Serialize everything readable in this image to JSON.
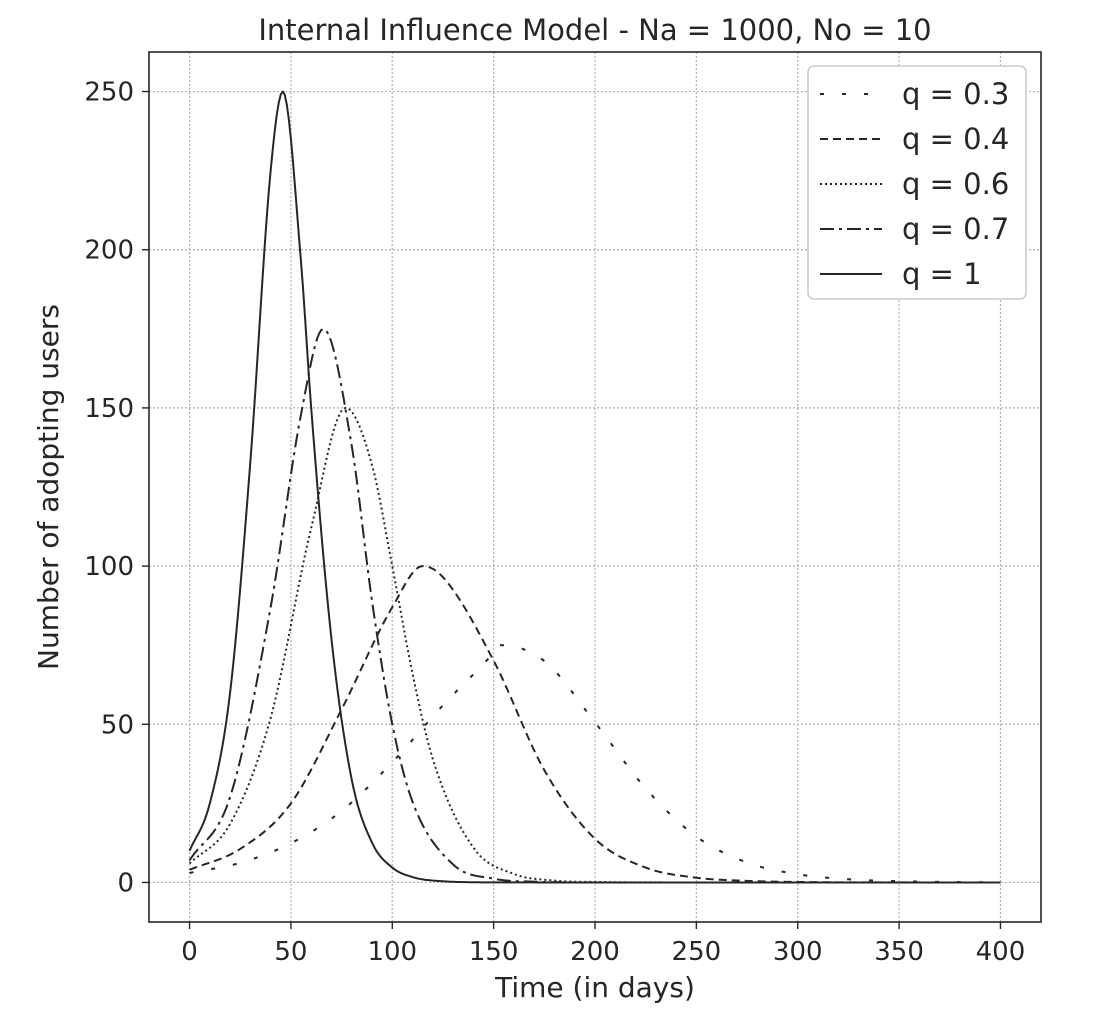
{
  "chart_data": {
    "type": "line",
    "title": "Internal Influence Model - Na = 1000, No = 10",
    "xlabel": "Time (in days)",
    "ylabel": "Number of adopting users",
    "xlim": [
      -20,
      420
    ],
    "ylim": [
      -12.5,
      262.5
    ],
    "xticks": [
      0,
      50,
      100,
      150,
      200,
      250,
      300,
      350,
      400
    ],
    "yticks": [
      0,
      50,
      100,
      150,
      200,
      250
    ],
    "grid": true,
    "legend_position": "top-right",
    "model": {
      "Na": 1000,
      "No": 10
    },
    "series": [
      {
        "name": "q = 0.3",
        "dash": "4 18",
        "peak_x": 153,
        "peak_y": 75,
        "x": [
          0,
          25,
          50,
          75,
          100,
          125,
          150,
          153,
          175,
          200,
          225,
          250,
          275,
          300,
          325,
          350,
          375,
          400
        ],
        "y": [
          3.0,
          6.2,
          12.4,
          22.6,
          38.0,
          56.0,
          72.6,
          75.0,
          70.0,
          50.6,
          29.7,
          14.5,
          6.3,
          2.6,
          1.0,
          0.4,
          0.15,
          0.05
        ]
      },
      {
        "name": "q = 0.4",
        "dash": "8 5",
        "peak_x": 115,
        "peak_y": 100,
        "x": [
          0,
          25,
          50,
          75,
          100,
          115,
          125,
          150,
          175,
          200,
          225,
          250,
          275,
          300,
          350,
          400
        ],
        "y": [
          4.0,
          10.6,
          25.0,
          54.7,
          87.0,
          100.0,
          96.5,
          70.1,
          35.5,
          13.8,
          4.7,
          1.5,
          0.5,
          0.15,
          0.01,
          0.0
        ]
      },
      {
        "name": "q = 0.6",
        "dash": "2 3",
        "peak_x": 77,
        "peak_y": 150,
        "x": [
          0,
          20,
          40,
          60,
          77,
          90,
          100,
          110,
          120,
          140,
          160,
          180,
          200,
          250,
          300,
          400
        ],
        "y": [
          6.0,
          18.5,
          52.0,
          112.0,
          150.0,
          132.0,
          100.0,
          66.0,
          39.0,
          11.0,
          2.7,
          0.6,
          0.15,
          0.0,
          0.0,
          0.0
        ]
      },
      {
        "name": "q = 0.7",
        "dash": "14 5 3 5",
        "peak_x": 66,
        "peak_y": 175,
        "x": [
          0,
          20,
          40,
          55,
          66,
          80,
          90,
          100,
          110,
          130,
          150,
          170,
          200,
          250,
          300,
          400
        ],
        "y": [
          7.0,
          27.0,
          87.0,
          148.0,
          175.0,
          138.0,
          89.0,
          50.0,
          25.5,
          5.7,
          1.2,
          0.25,
          0.0,
          0.0,
          0.0,
          0.0
        ]
      },
      {
        "name": "q = 1",
        "dash": "",
        "peak_x": 46,
        "peak_y": 250,
        "x": [
          0,
          10,
          20,
          30,
          40,
          46,
          55,
          60,
          70,
          80,
          90,
          100,
          110,
          120,
          150,
          200,
          400
        ],
        "y": [
          10.0,
          25.0,
          60.0,
          133.0,
          225.0,
          250.0,
          196.0,
          150.0,
          77.0,
          32.5,
          12.6,
          4.7,
          1.7,
          0.6,
          0.03,
          0.0,
          0.0
        ]
      }
    ]
  }
}
